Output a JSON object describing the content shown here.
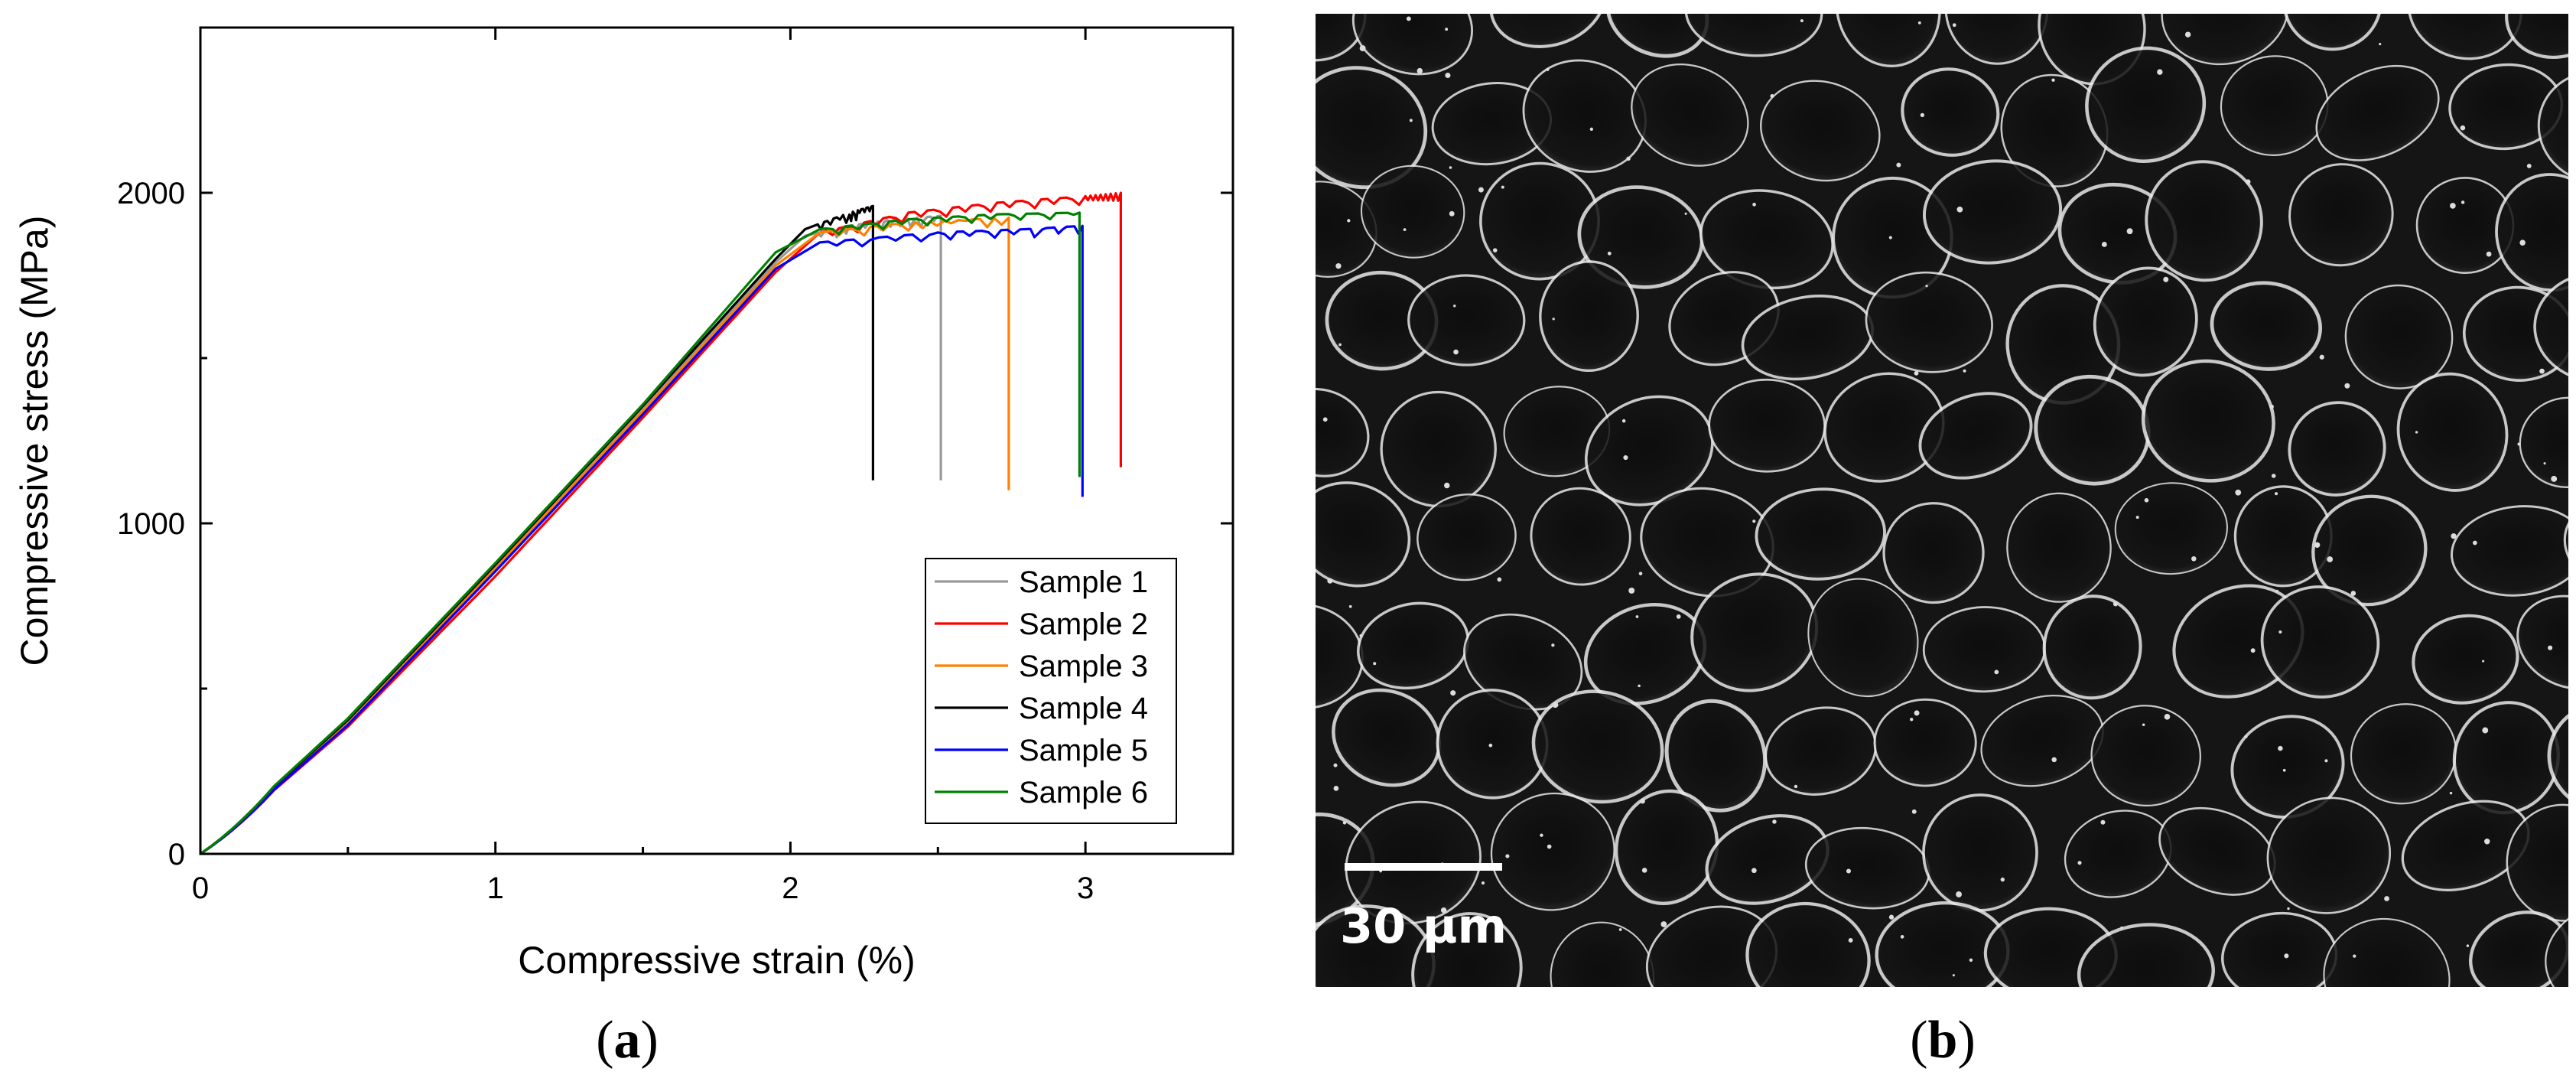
{
  "panels": {
    "a_label": "a",
    "b_label": "b"
  },
  "micrograph": {
    "scale_bar_label": "30 µm"
  },
  "chart_data": {
    "type": "line",
    "title": "",
    "xlabel": "Compressive strain (%)",
    "ylabel": "Compressive stress (MPa)",
    "xlim": [
      0,
      3.5
    ],
    "ylim": [
      0,
      2500
    ],
    "x_ticks": [
      0,
      1,
      2,
      3
    ],
    "y_ticks": [
      0,
      1000,
      2000
    ],
    "x_tick_labels": [
      "0",
      "1",
      "2",
      "3"
    ],
    "y_tick_labels": [
      "0",
      "1000",
      "2000"
    ],
    "grid": false,
    "legend_position": "lower-right",
    "series": [
      {
        "name": "Sample 1",
        "color": "#999999",
        "fracture_strain": 2.51,
        "x": [
          0,
          0.5,
          1.0,
          1.5,
          1.95,
          2.05,
          2.2,
          2.35,
          2.51,
          2.51
        ],
        "y": [
          0,
          400,
          870,
          1345,
          1790,
          1870,
          1900,
          1920,
          1930,
          1130
        ]
      },
      {
        "name": "Sample 2",
        "color": "#ff0000",
        "fracture_strain": 3.12,
        "x": [
          0,
          0.5,
          1.0,
          1.5,
          1.95,
          2.1,
          2.4,
          2.7,
          3.0,
          3.12,
          3.12
        ],
        "y": [
          0,
          385,
          840,
          1320,
          1760,
          1880,
          1940,
          1970,
          1990,
          2000,
          1170
        ]
      },
      {
        "name": "Sample 3",
        "color": "#ff8000",
        "fracture_strain": 2.74,
        "x": [
          0,
          0.5,
          1.0,
          1.5,
          1.95,
          2.1,
          2.4,
          2.74,
          2.74
        ],
        "y": [
          0,
          400,
          865,
          1340,
          1780,
          1880,
          1910,
          1925,
          1100
        ]
      },
      {
        "name": "Sample 4",
        "color": "#000000",
        "fracture_strain": 2.28,
        "x": [
          0,
          0.5,
          1.0,
          1.5,
          1.95,
          2.05,
          2.2,
          2.28,
          2.28
        ],
        "y": [
          0,
          405,
          875,
          1355,
          1800,
          1890,
          1940,
          1960,
          1130
        ]
      },
      {
        "name": "Sample 5",
        "color": "#0000ff",
        "fracture_strain": 2.99,
        "x": [
          0,
          0.5,
          1.0,
          1.5,
          1.95,
          2.1,
          2.5,
          2.8,
          2.99,
          2.99
        ],
        "y": [
          0,
          390,
          855,
          1330,
          1770,
          1850,
          1880,
          1890,
          1900,
          1080
        ]
      },
      {
        "name": "Sample 6",
        "color": "#008000",
        "fracture_strain": 2.98,
        "x": [
          0,
          0.5,
          1.0,
          1.5,
          1.95,
          2.1,
          2.4,
          2.7,
          2.98,
          2.98
        ],
        "y": [
          0,
          410,
          880,
          1360,
          1820,
          1890,
          1920,
          1935,
          1940,
          1140
        ]
      }
    ]
  }
}
